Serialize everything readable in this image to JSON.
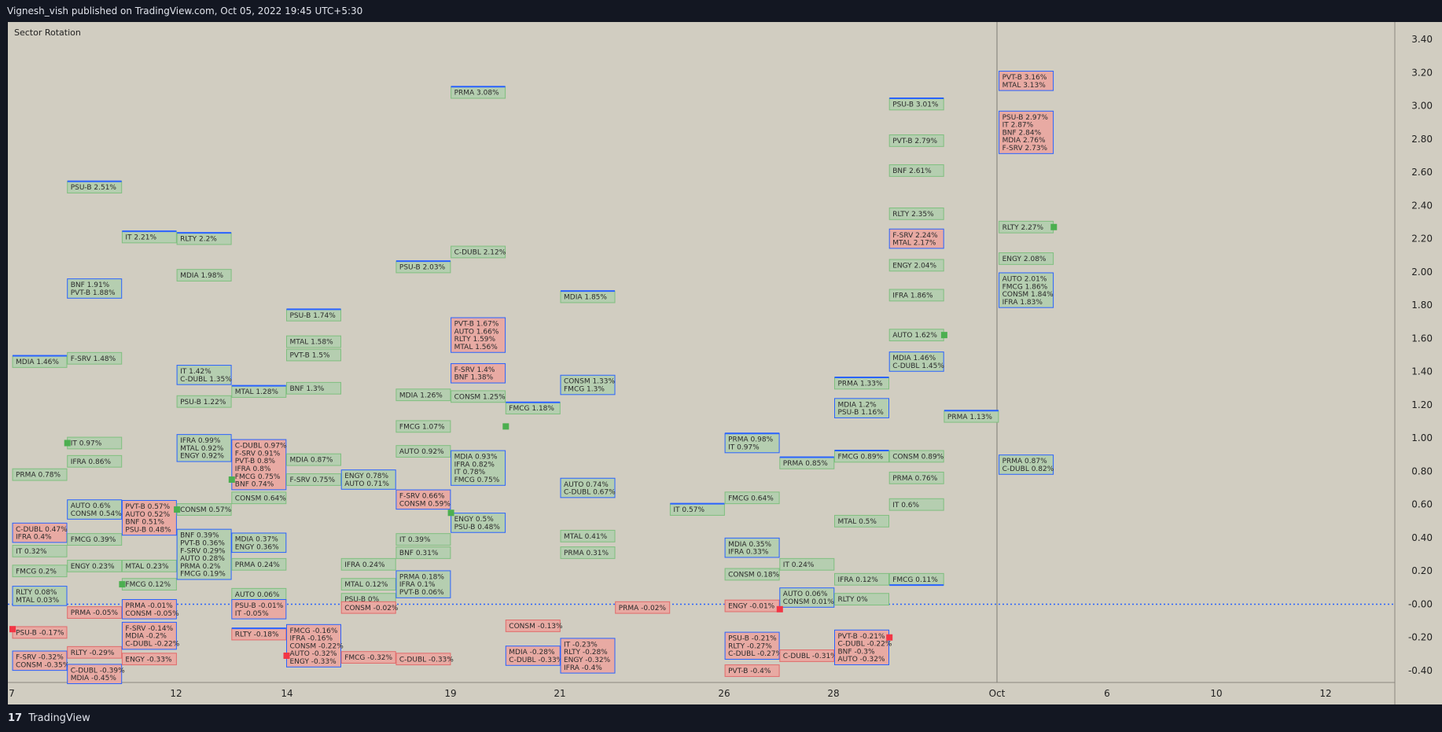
{
  "header": {
    "published": "Vignesh_vish published on TradingView.com, Oct 05, 2022 19:45 UTC+5:30"
  },
  "footer": {
    "brand": "TradingView",
    "logo_glyph": "17"
  },
  "colors": {
    "background": "#131722",
    "plot_bg": "#d1cdc1",
    "green_fill": "#b5ceb0",
    "green_border": "#7fbf7f",
    "red_fill": "#e8aaa3",
    "red_border": "#e06b6b",
    "blue": "#2962ff",
    "marker_green": "#4caf50",
    "marker_red": "#f23645"
  },
  "chart_data": {
    "type": "table",
    "title": "Sector Rotation",
    "ylim": [
      -0.5,
      3.45
    ],
    "y_ticks": [
      "3.40",
      "3.20",
      "3.00",
      "2.80",
      "2.60",
      "2.40",
      "2.20",
      "2.00",
      "1.80",
      "1.60",
      "1.40",
      "1.20",
      "1.00",
      "0.80",
      "0.60",
      "0.40",
      "0.20",
      "-0.00",
      "-0.20",
      "-0.40"
    ],
    "x_ticks": [
      "7",
      "12",
      "14",
      "19",
      "21",
      "26",
      "28",
      "Oct",
      "6",
      "10",
      "12"
    ],
    "zero_line": 0,
    "today_marker": "Oct",
    "boxes": [
      {
        "col": 0,
        "lines": [
          "MDIA 1.46%"
        ],
        "y": 1.46,
        "kind": "green",
        "top": true
      },
      {
        "col": 0,
        "lines": [
          "PRMA 0.78%"
        ],
        "y": 0.78,
        "kind": "green"
      },
      {
        "col": 0,
        "lines": [
          "C-DUBL 0.47%",
          "IFRA 0.4%"
        ],
        "y": 0.43,
        "kind": "blue"
      },
      {
        "col": 0,
        "lines": [
          "IT 0.32%"
        ],
        "y": 0.32,
        "kind": "green"
      },
      {
        "col": 0,
        "lines": [
          "FMCG 0.2%"
        ],
        "y": 0.2,
        "kind": "green"
      },
      {
        "col": 0,
        "lines": [
          "RLTY 0.08%",
          "MTAL 0.03%"
        ],
        "y": 0.05,
        "kind": "blue"
      },
      {
        "col": 0,
        "lines": [
          "PSU-B -0.17%"
        ],
        "y": -0.17,
        "kind": "red"
      },
      {
        "col": 0,
        "lines": [
          "F-SRV -0.32%",
          "CONSM -0.35%"
        ],
        "y": -0.34,
        "kind": "blue"
      },
      {
        "col": 1,
        "lines": [
          "PSU-B 2.51%"
        ],
        "y": 2.51,
        "kind": "green",
        "top": true
      },
      {
        "col": 1,
        "lines": [
          "BNF 1.91%",
          "PVT-B 1.88%"
        ],
        "y": 1.9,
        "kind": "blue"
      },
      {
        "col": 1,
        "lines": [
          "F-SRV 1.48%"
        ],
        "y": 1.48,
        "kind": "green"
      },
      {
        "col": 1,
        "lines": [
          "IT 0.97%"
        ],
        "y": 0.97,
        "kind": "green"
      },
      {
        "col": 1,
        "lines": [
          "IFRA 0.86%"
        ],
        "y": 0.86,
        "kind": "green"
      },
      {
        "col": 1,
        "lines": [
          "AUTO 0.6%",
          "CONSM 0.54%"
        ],
        "y": 0.57,
        "kind": "blue"
      },
      {
        "col": 1,
        "lines": [
          "FMCG 0.39%"
        ],
        "y": 0.39,
        "kind": "green"
      },
      {
        "col": 1,
        "lines": [
          "ENGY 0.23%"
        ],
        "y": 0.23,
        "kind": "green"
      },
      {
        "col": 1,
        "lines": [
          "PRMA -0.05%"
        ],
        "y": -0.05,
        "kind": "red"
      },
      {
        "col": 1,
        "lines": [
          "RLTY -0.29%"
        ],
        "y": -0.29,
        "kind": "red"
      },
      {
        "col": 1,
        "lines": [
          "C-DUBL -0.39%",
          "MDIA -0.45%"
        ],
        "y": -0.42,
        "kind": "blue"
      },
      {
        "col": 2,
        "lines": [
          "IT 2.21%"
        ],
        "y": 2.21,
        "kind": "green",
        "top": true
      },
      {
        "col": 2,
        "lines": [
          "PVT-B 0.57%",
          "AUTO 0.52%",
          "BNF 0.51%",
          "PSU-B 0.48%"
        ],
        "y": 0.52,
        "kind": "blue"
      },
      {
        "col": 2,
        "lines": [
          "MTAL 0.23%"
        ],
        "y": 0.23,
        "kind": "green"
      },
      {
        "col": 2,
        "lines": [
          "FMCG 0.12%"
        ],
        "y": 0.12,
        "kind": "green"
      },
      {
        "col": 2,
        "lines": [
          "PRMA -0.01%",
          "CONSM -0.05%"
        ],
        "y": -0.03,
        "kind": "blue"
      },
      {
        "col": 2,
        "lines": [
          "F-SRV -0.14%",
          "MDIA -0.2%",
          "C-DUBL -0.22%"
        ],
        "y": -0.19,
        "kind": "blue"
      },
      {
        "col": 2,
        "lines": [
          "ENGY -0.33%"
        ],
        "y": -0.33,
        "kind": "red"
      },
      {
        "col": 3,
        "lines": [
          "RLTY 2.2%"
        ],
        "y": 2.2,
        "kind": "green",
        "top": true
      },
      {
        "col": 3,
        "lines": [
          "MDIA 1.98%"
        ],
        "y": 1.98,
        "kind": "green"
      },
      {
        "col": 3,
        "lines": [
          "IT 1.42%",
          "C-DUBL 1.35%"
        ],
        "y": 1.38,
        "kind": "blue"
      },
      {
        "col": 3,
        "lines": [
          "PSU-B 1.22%"
        ],
        "y": 1.22,
        "kind": "green"
      },
      {
        "col": 3,
        "lines": [
          "IFRA 0.99%",
          "MTAL 0.92%",
          "ENGY 0.92%"
        ],
        "y": 0.94,
        "kind": "blue"
      },
      {
        "col": 3,
        "lines": [
          "CONSM 0.57%"
        ],
        "y": 0.57,
        "kind": "green"
      },
      {
        "col": 3,
        "lines": [
          "BNF 0.39%",
          "PVT-B 0.36%",
          "F-SRV 0.29%",
          "AUTO 0.28%",
          "PRMA 0.2%",
          "FMCG 0.19%"
        ],
        "y": 0.3,
        "kind": "blue"
      },
      {
        "col": 4,
        "lines": [
          "MTAL 1.28%"
        ],
        "y": 1.28,
        "kind": "green",
        "top": true
      },
      {
        "col": 4,
        "lines": [
          "C-DUBL 0.97%",
          "F-SRV 0.91%",
          "PVT-B 0.8%",
          "IFRA 0.8%",
          "FMCG 0.75%",
          "BNF 0.74%"
        ],
        "y": 0.84,
        "kind": "blue"
      },
      {
        "col": 4,
        "lines": [
          "CONSM 0.64%"
        ],
        "y": 0.64,
        "kind": "green"
      },
      {
        "col": 4,
        "lines": [
          "MDIA 0.37%",
          "ENGY 0.36%"
        ],
        "y": 0.37,
        "kind": "blue"
      },
      {
        "col": 4,
        "lines": [
          "PRMA 0.24%"
        ],
        "y": 0.24,
        "kind": "green"
      },
      {
        "col": 4,
        "lines": [
          "AUTO 0.06%"
        ],
        "y": 0.06,
        "kind": "green"
      },
      {
        "col": 4,
        "lines": [
          "PSU-B -0.01%",
          "IT -0.05%"
        ],
        "y": -0.03,
        "kind": "blue"
      },
      {
        "col": 4,
        "lines": [
          "RLTY -0.18%"
        ],
        "y": -0.18,
        "kind": "red",
        "top": true
      },
      {
        "col": 5,
        "lines": [
          "PSU-B 1.74%"
        ],
        "y": 1.74,
        "kind": "green",
        "top": true
      },
      {
        "col": 5,
        "lines": [
          "MTAL 1.58%"
        ],
        "y": 1.58,
        "kind": "green"
      },
      {
        "col": 5,
        "lines": [
          "PVT-B 1.5%"
        ],
        "y": 1.5,
        "kind": "green"
      },
      {
        "col": 5,
        "lines": [
          "BNF 1.3%"
        ],
        "y": 1.3,
        "kind": "green"
      },
      {
        "col": 5,
        "lines": [
          "MDIA 0.87%"
        ],
        "y": 0.87,
        "kind": "green"
      },
      {
        "col": 5,
        "lines": [
          "F-SRV 0.75%"
        ],
        "y": 0.75,
        "kind": "green"
      },
      {
        "col": 5,
        "lines": [
          "FMCG -0.16%",
          "IFRA -0.16%",
          "CONSM -0.22%",
          "AUTO -0.32%",
          "ENGY -0.33%"
        ],
        "y": -0.25,
        "kind": "blue"
      },
      {
        "col": 6,
        "lines": [
          "ENGY 0.78%",
          "AUTO 0.71%"
        ],
        "y": 0.75,
        "kind": "blue"
      },
      {
        "col": 6,
        "lines": [
          "IFRA 0.24%"
        ],
        "y": 0.24,
        "kind": "green"
      },
      {
        "col": 6,
        "lines": [
          "MTAL 0.12%"
        ],
        "y": 0.12,
        "kind": "green"
      },
      {
        "col": 6,
        "lines": [
          "PSU-B 0%"
        ],
        "y": 0.03,
        "kind": "green"
      },
      {
        "col": 6,
        "lines": [
          "CONSM -0.02%"
        ],
        "y": -0.02,
        "kind": "red"
      },
      {
        "col": 6,
        "lines": [
          "FMCG -0.32%"
        ],
        "y": -0.32,
        "kind": "red"
      },
      {
        "col": 7,
        "lines": [
          "PSU-B 2.03%"
        ],
        "y": 2.03,
        "kind": "green",
        "top": true
      },
      {
        "col": 7,
        "lines": [
          "MDIA 1.26%"
        ],
        "y": 1.26,
        "kind": "green"
      },
      {
        "col": 7,
        "lines": [
          "FMCG 1.07%"
        ],
        "y": 1.07,
        "kind": "green"
      },
      {
        "col": 7,
        "lines": [
          "AUTO 0.92%"
        ],
        "y": 0.92,
        "kind": "green"
      },
      {
        "col": 7,
        "lines": [
          "F-SRV 0.66%",
          "CONSM 0.59%"
        ],
        "y": 0.63,
        "kind": "blue"
      },
      {
        "col": 7,
        "lines": [
          "IT 0.39%"
        ],
        "y": 0.39,
        "kind": "green"
      },
      {
        "col": 7,
        "lines": [
          "BNF 0.31%"
        ],
        "y": 0.31,
        "kind": "green"
      },
      {
        "col": 7,
        "lines": [
          "PRMA 0.18%",
          "IFRA 0.1%",
          "PVT-B 0.06%"
        ],
        "y": 0.12,
        "kind": "blue"
      },
      {
        "col": 7,
        "lines": [
          "C-DUBL -0.33%"
        ],
        "y": -0.33,
        "kind": "red"
      },
      {
        "col": 8,
        "lines": [
          "PRMA 3.08%"
        ],
        "y": 3.08,
        "kind": "green",
        "top": true
      },
      {
        "col": 8,
        "lines": [
          "C-DUBL 2.12%"
        ],
        "y": 2.12,
        "kind": "green"
      },
      {
        "col": 8,
        "lines": [
          "PVT-B 1.67%",
          "AUTO 1.66%",
          "RLTY 1.59%",
          "MTAL 1.56%"
        ],
        "y": 1.62,
        "kind": "blue"
      },
      {
        "col": 8,
        "lines": [
          "F-SRV 1.4%",
          "BNF 1.38%"
        ],
        "y": 1.39,
        "kind": "blue"
      },
      {
        "col": 8,
        "lines": [
          "CONSM 1.25%"
        ],
        "y": 1.25,
        "kind": "green"
      },
      {
        "col": 8,
        "lines": [
          "MDIA 0.93%",
          "IFRA 0.82%",
          "IT 0.78%",
          "FMCG 0.75%"
        ],
        "y": 0.82,
        "kind": "blue"
      },
      {
        "col": 8,
        "lines": [
          "ENGY 0.5%",
          "PSU-B 0.48%"
        ],
        "y": 0.49,
        "kind": "blue"
      },
      {
        "col": 9,
        "lines": [
          "FMCG 1.18%"
        ],
        "y": 1.18,
        "kind": "green",
        "top": true
      },
      {
        "col": 9,
        "lines": [
          "CONSM -0.13%"
        ],
        "y": -0.13,
        "kind": "red"
      },
      {
        "col": 9,
        "lines": [
          "MDIA -0.28%",
          "C-DUBL -0.33%"
        ],
        "y": -0.31,
        "kind": "blue"
      },
      {
        "col": 10,
        "lines": [
          "MDIA 1.85%"
        ],
        "y": 1.85,
        "kind": "green",
        "top": true
      },
      {
        "col": 10,
        "lines": [
          "CONSM 1.33%",
          "FMCG 1.3%"
        ],
        "y": 1.32,
        "kind": "blue"
      },
      {
        "col": 10,
        "lines": [
          "AUTO 0.74%",
          "C-DUBL 0.67%"
        ],
        "y": 0.7,
        "kind": "blue"
      },
      {
        "col": 10,
        "lines": [
          "MTAL 0.41%"
        ],
        "y": 0.41,
        "kind": "green"
      },
      {
        "col": 10,
        "lines": [
          "PRMA 0.31%"
        ],
        "y": 0.31,
        "kind": "green"
      },
      {
        "col": 10,
        "lines": [
          "IT -0.23%",
          "RLTY -0.28%",
          "ENGY -0.32%",
          "IFRA -0.4%"
        ],
        "y": -0.31,
        "kind": "blue"
      },
      {
        "col": 11,
        "lines": [
          "PRMA -0.02%"
        ],
        "y": -0.02,
        "kind": "red"
      },
      {
        "col": 12,
        "lines": [
          "IT 0.57%"
        ],
        "y": 0.57,
        "kind": "green",
        "top": true
      },
      {
        "col": 13,
        "lines": [
          "PRMA 0.98%",
          "IT 0.97%"
        ],
        "y": 0.97,
        "kind": "blue",
        "top": true
      },
      {
        "col": 13,
        "lines": [
          "FMCG 0.64%"
        ],
        "y": 0.64,
        "kind": "green"
      },
      {
        "col": 13,
        "lines": [
          "MDIA 0.35%",
          "IFRA 0.33%"
        ],
        "y": 0.34,
        "kind": "blue"
      },
      {
        "col": 13,
        "lines": [
          "CONSM 0.18%"
        ],
        "y": 0.18,
        "kind": "green"
      },
      {
        "col": 13,
        "lines": [
          "ENGY -0.01%"
        ],
        "y": -0.01,
        "kind": "red"
      },
      {
        "col": 13,
        "lines": [
          "PSU-B -0.21%",
          "RLTY -0.27%",
          "C-DUBL -0.27%"
        ],
        "y": -0.25,
        "kind": "blue"
      },
      {
        "col": 13,
        "lines": [
          "PVT-B -0.4%"
        ],
        "y": -0.4,
        "kind": "red"
      },
      {
        "col": 14,
        "lines": [
          "PRMA 0.85%"
        ],
        "y": 0.85,
        "kind": "green",
        "top": true
      },
      {
        "col": 14,
        "lines": [
          "IT 0.24%"
        ],
        "y": 0.24,
        "kind": "green"
      },
      {
        "col": 14,
        "lines": [
          "AUTO 0.06%",
          "CONSM 0.01%"
        ],
        "y": 0.04,
        "kind": "blue"
      },
      {
        "col": 14,
        "lines": [
          "C-DUBL -0.31%"
        ],
        "y": -0.31,
        "kind": "red"
      },
      {
        "col": 15,
        "lines": [
          "PRMA 1.33%"
        ],
        "y": 1.33,
        "kind": "green",
        "top": true
      },
      {
        "col": 15,
        "lines": [
          "MDIA 1.2%",
          "PSU-B 1.16%"
        ],
        "y": 1.18,
        "kind": "blue"
      },
      {
        "col": 15,
        "lines": [
          "FMCG 0.89%"
        ],
        "y": 0.89,
        "kind": "green",
        "top": true
      },
      {
        "col": 15,
        "lines": [
          "MTAL 0.5%"
        ],
        "y": 0.5,
        "kind": "green"
      },
      {
        "col": 15,
        "lines": [
          "IFRA 0.12%"
        ],
        "y": 0.15,
        "kind": "green"
      },
      {
        "col": 15,
        "lines": [
          "RLTY 0%"
        ],
        "y": 0.03,
        "kind": "green"
      },
      {
        "col": 15,
        "lines": [
          "PVT-B -0.21%",
          "C-DUBL -0.22%",
          "BNF -0.3%",
          "AUTO -0.32%"
        ],
        "y": -0.26,
        "kind": "blue"
      },
      {
        "col": 16,
        "lines": [
          "PSU-B 3.01%"
        ],
        "y": 3.01,
        "kind": "green",
        "top": true
      },
      {
        "col": 16,
        "lines": [
          "PVT-B 2.79%"
        ],
        "y": 2.79,
        "kind": "green"
      },
      {
        "col": 16,
        "lines": [
          "BNF 2.61%"
        ],
        "y": 2.61,
        "kind": "green"
      },
      {
        "col": 16,
        "lines": [
          "RLTY 2.35%"
        ],
        "y": 2.35,
        "kind": "green"
      },
      {
        "col": 16,
        "lines": [
          "F-SRV 2.24%",
          "MTAL 2.17%"
        ],
        "y": 2.2,
        "kind": "blue"
      },
      {
        "col": 16,
        "lines": [
          "ENGY 2.04%"
        ],
        "y": 2.04,
        "kind": "green"
      },
      {
        "col": 16,
        "lines": [
          "IFRA 1.86%"
        ],
        "y": 1.86,
        "kind": "green"
      },
      {
        "col": 16,
        "lines": [
          "AUTO 1.62%"
        ],
        "y": 1.62,
        "kind": "green"
      },
      {
        "col": 16,
        "lines": [
          "MDIA 1.46%",
          "C-DUBL 1.45%"
        ],
        "y": 1.46,
        "kind": "blue"
      },
      {
        "col": 16,
        "lines": [
          "CONSM 0.89%"
        ],
        "y": 0.89,
        "kind": "green"
      },
      {
        "col": 16,
        "lines": [
          "PRMA 0.76%"
        ],
        "y": 0.76,
        "kind": "green"
      },
      {
        "col": 16,
        "lines": [
          "IT 0.6%"
        ],
        "y": 0.6,
        "kind": "green"
      },
      {
        "col": 16,
        "lines": [
          "FMCG 0.11%"
        ],
        "y": 0.15,
        "kind": "green",
        "bottom": true
      },
      {
        "col": 17,
        "lines": [
          "PRMA 1.13%"
        ],
        "y": 1.13,
        "kind": "green",
        "top": true
      },
      {
        "col": 18,
        "lines": [
          "PVT-B 3.16%",
          "MTAL 3.13%"
        ],
        "y": 3.15,
        "kind": "blue"
      },
      {
        "col": 18,
        "lines": [
          "PSU-B 2.97%",
          "IT 2.87%",
          "BNF 2.84%",
          "MDIA 2.76%",
          "F-SRV 2.73%"
        ],
        "y": 2.84,
        "kind": "blue"
      },
      {
        "col": 18,
        "lines": [
          "RLTY 2.27%"
        ],
        "y": 2.27,
        "kind": "green"
      },
      {
        "col": 18,
        "lines": [
          "ENGY 2.08%"
        ],
        "y": 2.08,
        "kind": "green"
      },
      {
        "col": 18,
        "lines": [
          "AUTO 2.01%",
          "FMCG 1.86%",
          "CONSM 1.84%",
          "IFRA 1.83%"
        ],
        "y": 1.89,
        "kind": "blue"
      },
      {
        "col": 18,
        "lines": [
          "PRMA 0.87%",
          "C-DUBL 0.82%"
        ],
        "y": 0.84,
        "kind": "blue"
      }
    ],
    "markers": [
      {
        "col": 1,
        "y": 0.97,
        "kind": "green"
      },
      {
        "col": 3,
        "y": 0.57,
        "kind": "green"
      },
      {
        "col": 4,
        "y": 0.75,
        "kind": "green"
      },
      {
        "col": 2,
        "y": 0.12,
        "kind": "green"
      },
      {
        "col": 8,
        "y": 0.55,
        "kind": "green"
      },
      {
        "col": 9,
        "y": 1.07,
        "kind": "green"
      },
      {
        "col": 17,
        "y": 1.62,
        "kind": "green"
      },
      {
        "col": 19,
        "y": 2.27,
        "kind": "green"
      },
      {
        "col": 0,
        "y": -0.15,
        "kind": "red"
      },
      {
        "col": 5,
        "y": -0.31,
        "kind": "red"
      },
      {
        "col": 14,
        "y": -0.03,
        "kind": "red"
      },
      {
        "col": 16,
        "y": -0.2,
        "kind": "red"
      }
    ]
  }
}
